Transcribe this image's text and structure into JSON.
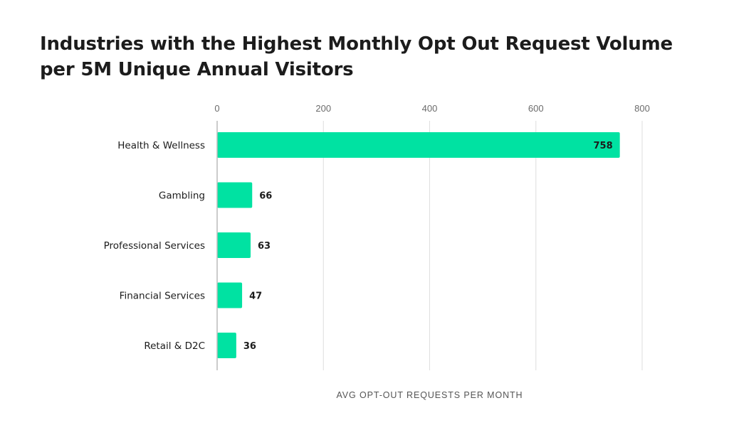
{
  "chart_data": {
    "type": "bar",
    "orientation": "horizontal",
    "title": "Industries with the Highest Monthly Opt Out Request Volume per 5M Unique Annual Visitors",
    "xlabel": "AVG OPT-OUT REQUESTS PER MONTH",
    "ylabel": "",
    "categories": [
      "Health & Wellness",
      "Gambling",
      "Professional Services",
      "Financial Services",
      "Retail & D2C"
    ],
    "values": [
      758,
      66,
      63,
      47,
      36
    ],
    "data_labels": [
      "758",
      "66",
      "63",
      "47",
      "36"
    ],
    "xlim": [
      0,
      800
    ],
    "x_ticks": [
      0,
      200,
      400,
      600,
      800
    ],
    "x_tick_labels": [
      "0",
      "200",
      "400",
      "600",
      "800"
    ],
    "x_axis_position": "top",
    "grid": true,
    "legend": "none",
    "bar_color": "#00e2a2",
    "grid_color": "#dedede",
    "axis_color": "#bcbcbc"
  }
}
